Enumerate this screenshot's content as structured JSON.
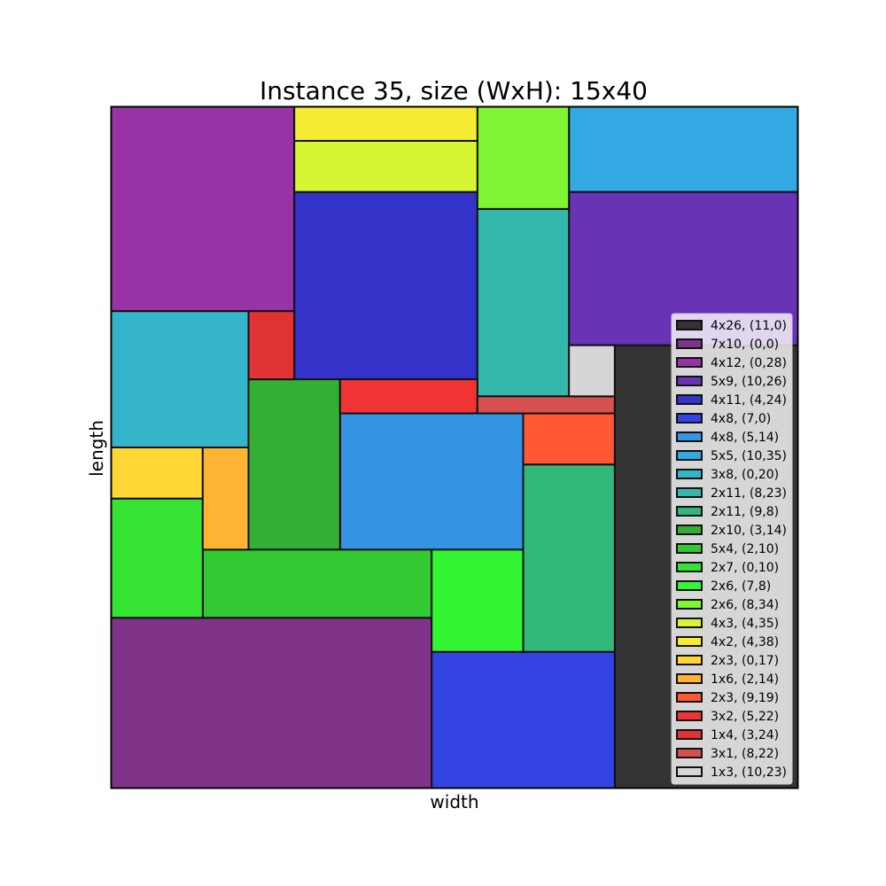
{
  "chart_data": {
    "type": "rectangle_packing",
    "title": "Instance 35, size (WxH): 15x40",
    "xlabel": "width",
    "ylabel": "length",
    "xlim": [
      0,
      15
    ],
    "ylim": [
      0,
      40
    ],
    "legend_position": "right",
    "rectangles": [
      {
        "label": "4x26, (11,0)",
        "w": 4,
        "h": 26,
        "x": 11,
        "y": 0,
        "color": "#333333"
      },
      {
        "label": "7x10, (0,0)",
        "w": 7,
        "h": 10,
        "x": 0,
        "y": 0,
        "color": "#7f3389"
      },
      {
        "label": "4x12, (0,28)",
        "w": 4,
        "h": 12,
        "x": 0,
        "y": 28,
        "color": "#9833a6"
      },
      {
        "label": "5x9, (10,26)",
        "w": 5,
        "h": 9,
        "x": 10,
        "y": 26,
        "color": "#6933b6"
      },
      {
        "label": "4x11, (4,24)",
        "w": 4,
        "h": 11,
        "x": 4,
        "y": 24,
        "color": "#3333c9"
      },
      {
        "label": "4x8, (7,0)",
        "w": 4,
        "h": 8,
        "x": 7,
        "y": 0,
        "color": "#3344e2"
      },
      {
        "label": "4x8, (5,14)",
        "w": 4,
        "h": 8,
        "x": 5,
        "y": 14,
        "color": "#3594e3"
      },
      {
        "label": "5x5, (10,35)",
        "w": 5,
        "h": 5,
        "x": 10,
        "y": 35,
        "color": "#34a8e2"
      },
      {
        "label": "3x8, (0,20)",
        "w": 3,
        "h": 8,
        "x": 0,
        "y": 20,
        "color": "#33b4c9"
      },
      {
        "label": "2x11, (8,23)",
        "w": 2,
        "h": 11,
        "x": 8,
        "y": 23,
        "color": "#33b8ab"
      },
      {
        "label": "2x11, (9,8)",
        "w": 2,
        "h": 11,
        "x": 9,
        "y": 8,
        "color": "#33b87b"
      },
      {
        "label": "2x10, (3,14)",
        "w": 2,
        "h": 10,
        "x": 3,
        "y": 14,
        "color": "#33af33"
      },
      {
        "label": "5x4, (2,10)",
        "w": 5,
        "h": 4,
        "x": 2,
        "y": 10,
        "color": "#33c933"
      },
      {
        "label": "2x7, (0,10)",
        "w": 2,
        "h": 7,
        "x": 0,
        "y": 10,
        "color": "#36e233"
      },
      {
        "label": "2x6, (7,8)",
        "w": 2,
        "h": 6,
        "x": 7,
        "y": 8,
        "color": "#33f533"
      },
      {
        "label": "2x6, (8,34)",
        "w": 2,
        "h": 6,
        "x": 8,
        "y": 34,
        "color": "#7ff533"
      },
      {
        "label": "4x3, (4,35)",
        "w": 4,
        "h": 3,
        "x": 4,
        "y": 35,
        "color": "#d6f533"
      },
      {
        "label": "4x2, (4,38)",
        "w": 4,
        "h": 2,
        "x": 4,
        "y": 38,
        "color": "#f5eb33"
      },
      {
        "label": "2x3, (0,17)",
        "w": 2,
        "h": 3,
        "x": 0,
        "y": 17,
        "color": "#ffd633"
      },
      {
        "label": "1x6, (2,14)",
        "w": 1,
        "h": 6,
        "x": 2,
        "y": 14,
        "color": "#ffb333"
      },
      {
        "label": "2x3, (9,19)",
        "w": 2,
        "h": 3,
        "x": 9,
        "y": 19,
        "color": "#ff5833"
      },
      {
        "label": "3x2, (5,22)",
        "w": 3,
        "h": 2,
        "x": 5,
        "y": 22,
        "color": "#f03333"
      },
      {
        "label": "1x4, (3,24)",
        "w": 1,
        "h": 4,
        "x": 3,
        "y": 24,
        "color": "#e03333"
      },
      {
        "label": "3x1, (8,22)",
        "w": 3,
        "h": 1,
        "x": 8,
        "y": 22,
        "color": "#d65050"
      },
      {
        "label": "1x3, (10,23)",
        "w": 1,
        "h": 3,
        "x": 10,
        "y": 23,
        "color": "#d6d6d6"
      }
    ]
  }
}
